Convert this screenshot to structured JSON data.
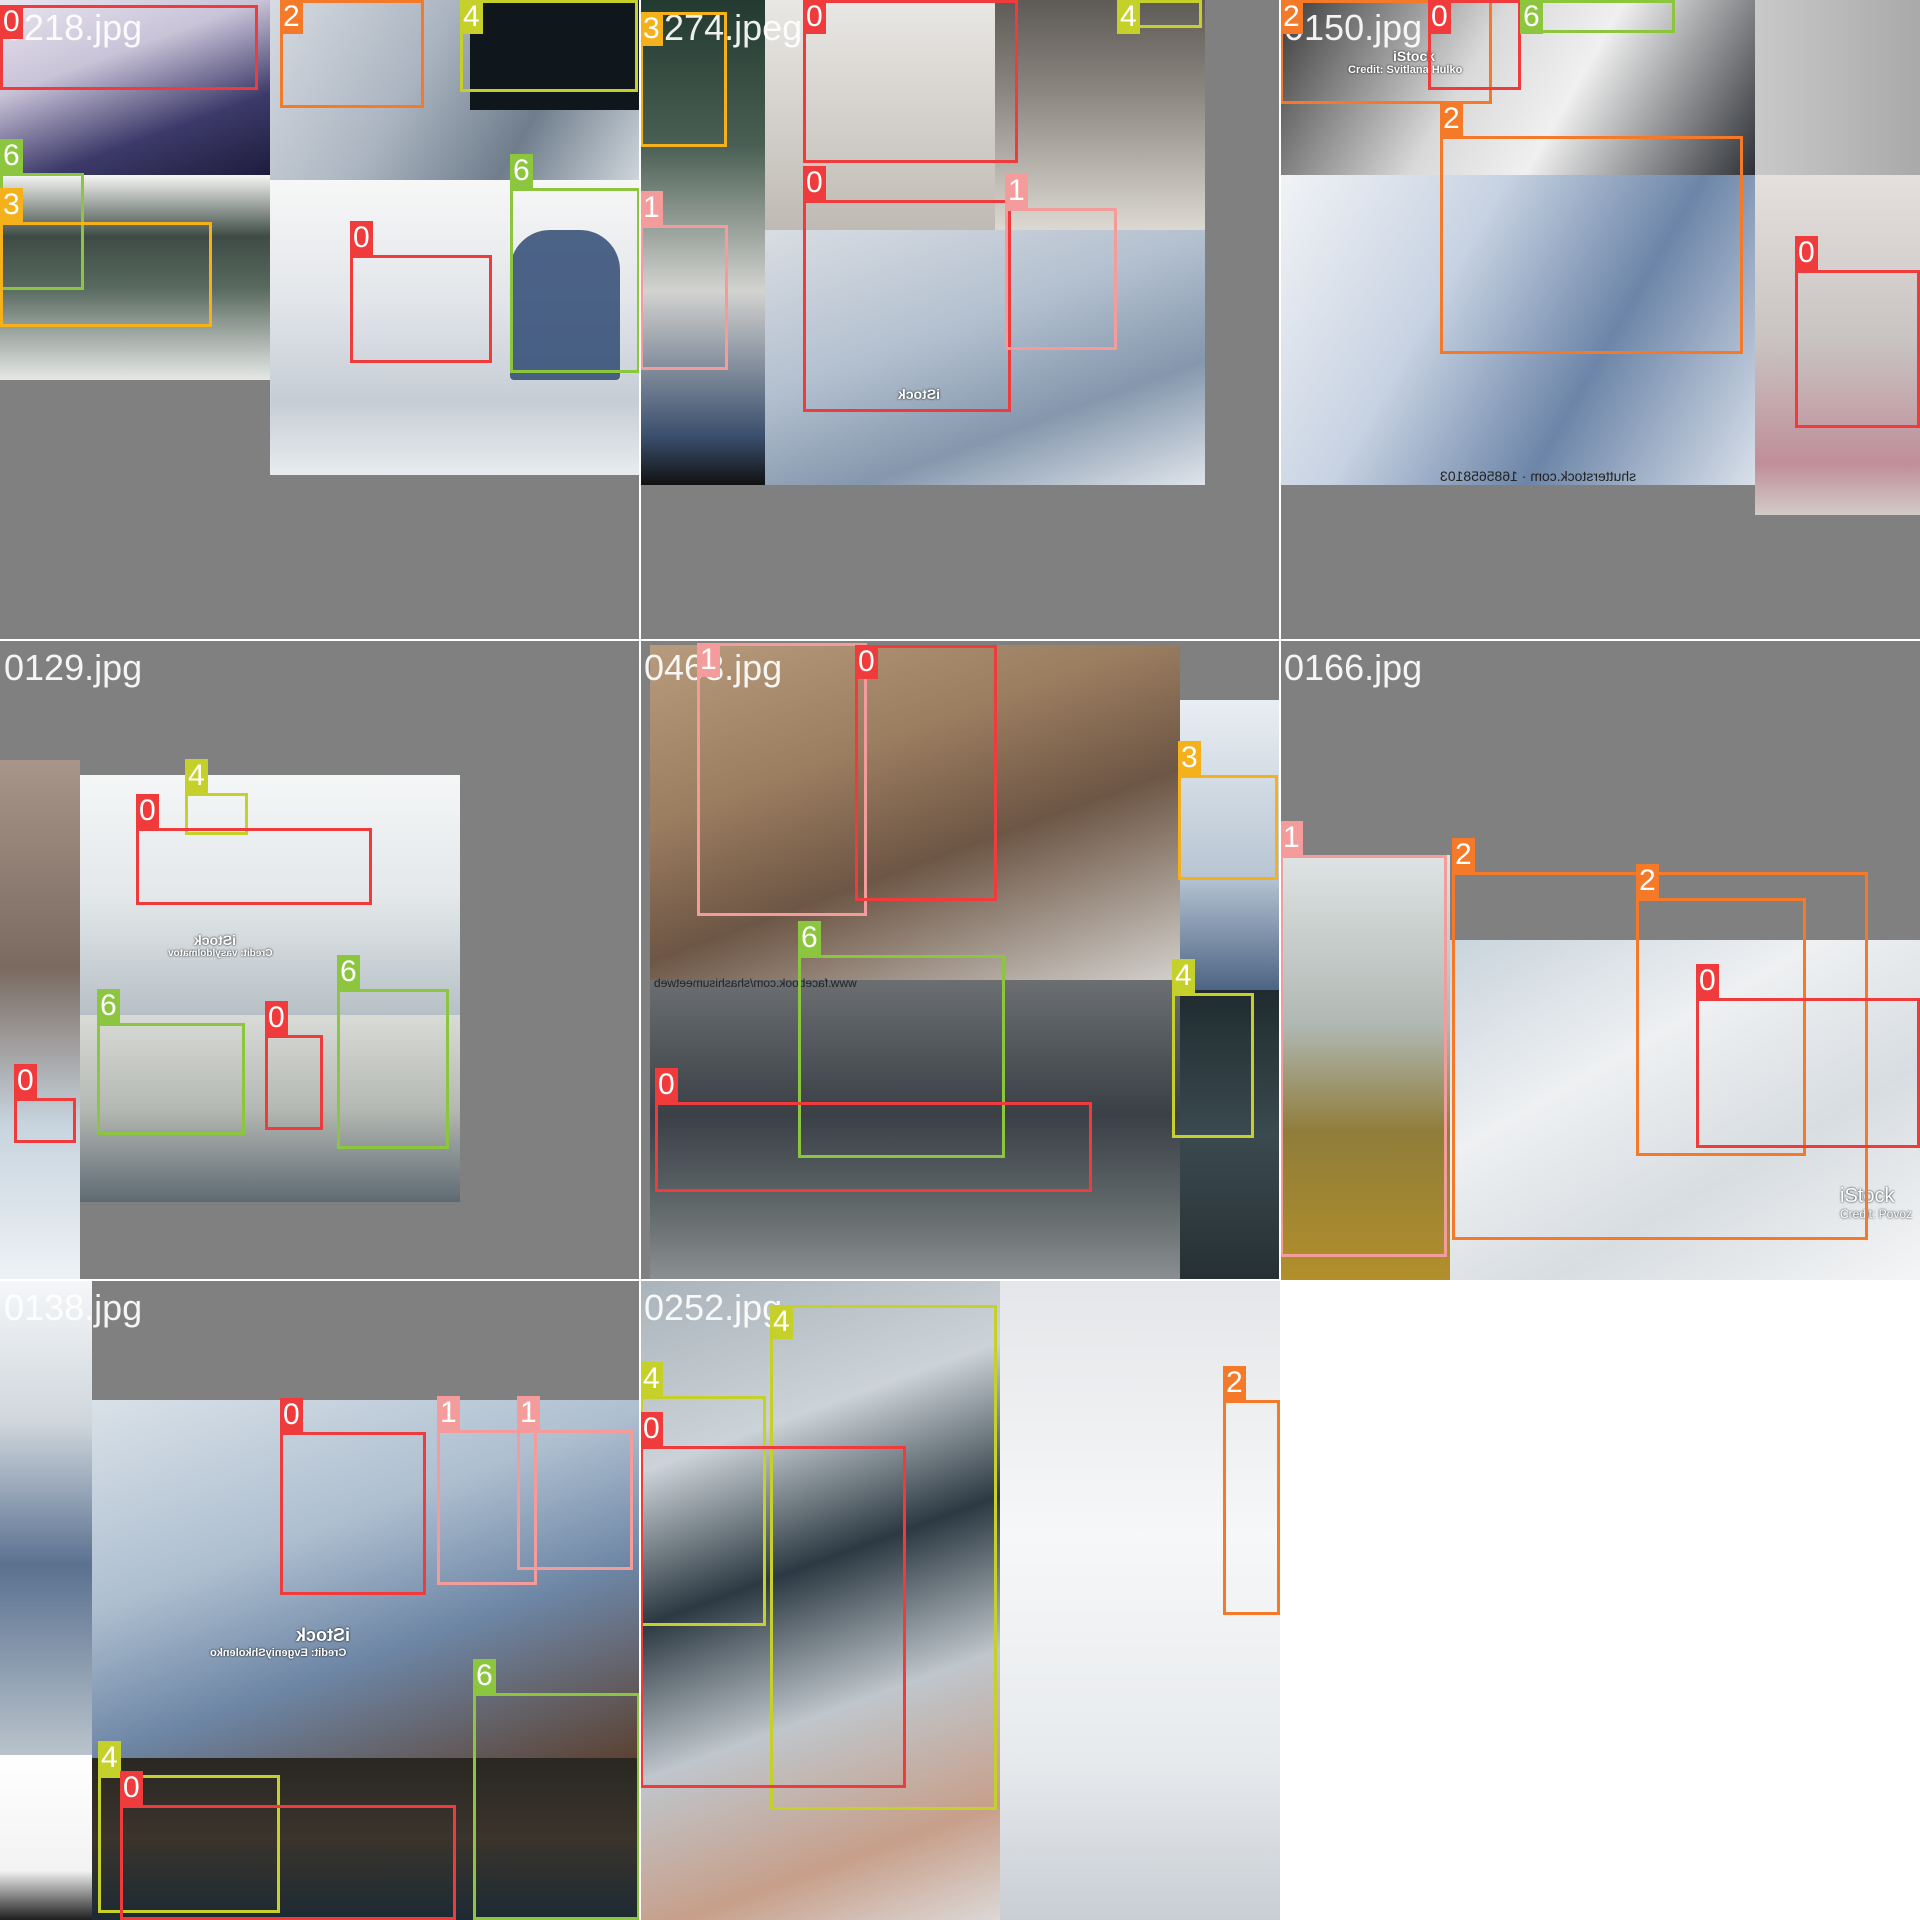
{
  "class_colors": {
    "0": "#ef3b3b",
    "1": "#f49c9c",
    "2": "#f47a2a",
    "3": "#f5b11c",
    "4": "#c6d02b",
    "6": "#8cc63f"
  },
  "tiles": [
    {
      "title": "0218.jpg",
      "boxes": [
        "0",
        "2",
        "4",
        "6",
        "3",
        "0",
        "6"
      ]
    },
    {
      "title": "0274.jpeg",
      "boxes": [
        "3",
        "0",
        "4",
        "0",
        "1",
        "1"
      ]
    },
    {
      "title": "0150.jpg",
      "boxes": [
        "2",
        "0",
        "6",
        "2",
        "0"
      ]
    },
    {
      "title": "0129.jpg",
      "boxes": [
        "4",
        "0",
        "6",
        "6",
        "0",
        "0"
      ]
    },
    {
      "title": "0468.jpg",
      "boxes": [
        "1",
        "0",
        "3",
        "6",
        "4",
        "0"
      ]
    },
    {
      "title": "0166.jpg",
      "boxes": [
        "1",
        "2",
        "2",
        "0"
      ]
    },
    {
      "title": "0138.jpg",
      "boxes": [
        "0",
        "1",
        "1",
        "6",
        "4",
        "0"
      ]
    },
    {
      "title": "0252.jpg",
      "boxes": [
        "4",
        "4",
        "0",
        "2"
      ]
    }
  ],
  "watermarks": {
    "istock": "iStock",
    "credit_savelena": "Credit: Svitlana Hulko",
    "credit_vasyl": "Credit: vasyldolmatov",
    "credit_povoz": "Credit: Povoz",
    "credit_evgeniy": "Credit: EvgeniyShkolenko",
    "shutterstock": "shutterstock.com · 1685658103",
    "facebook": "www.facebook.com/shashisumeetweb"
  }
}
